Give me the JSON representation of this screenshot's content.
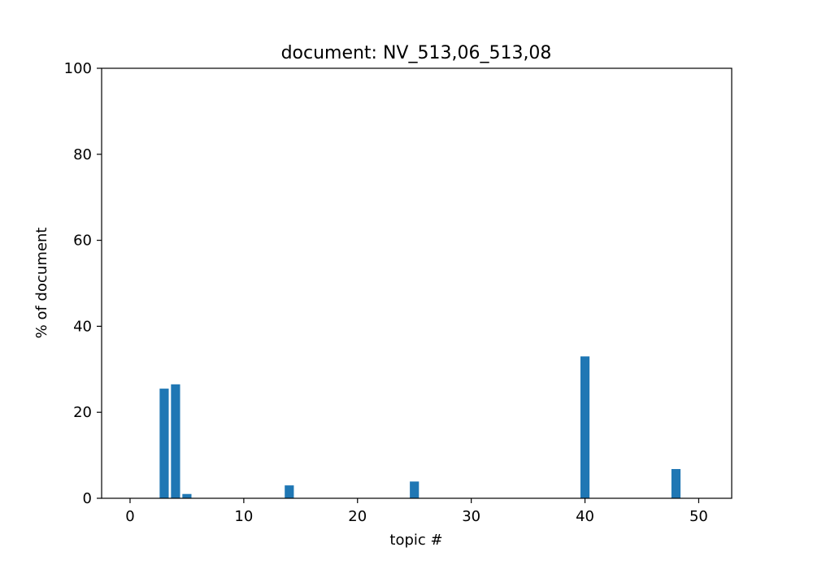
{
  "chart_data": {
    "type": "bar",
    "title": "document: NV_513,06_513,08",
    "xlabel": "topic #",
    "ylabel": "% of document",
    "xlim": [
      -2.5,
      52.9
    ],
    "ylim": [
      0,
      100
    ],
    "xticks": [
      0,
      10,
      20,
      30,
      40,
      50
    ],
    "yticks": [
      0,
      20,
      40,
      60,
      80,
      100
    ],
    "grid": false,
    "bar_color": "#1f77b4",
    "bars": [
      {
        "x": 3,
        "value": 25.5
      },
      {
        "x": 4,
        "value": 26.5
      },
      {
        "x": 5,
        "value": 1.0
      },
      {
        "x": 14,
        "value": 3.0
      },
      {
        "x": 25,
        "value": 3.9
      },
      {
        "x": 40,
        "value": 33.0
      },
      {
        "x": 48,
        "value": 6.8
      }
    ]
  }
}
